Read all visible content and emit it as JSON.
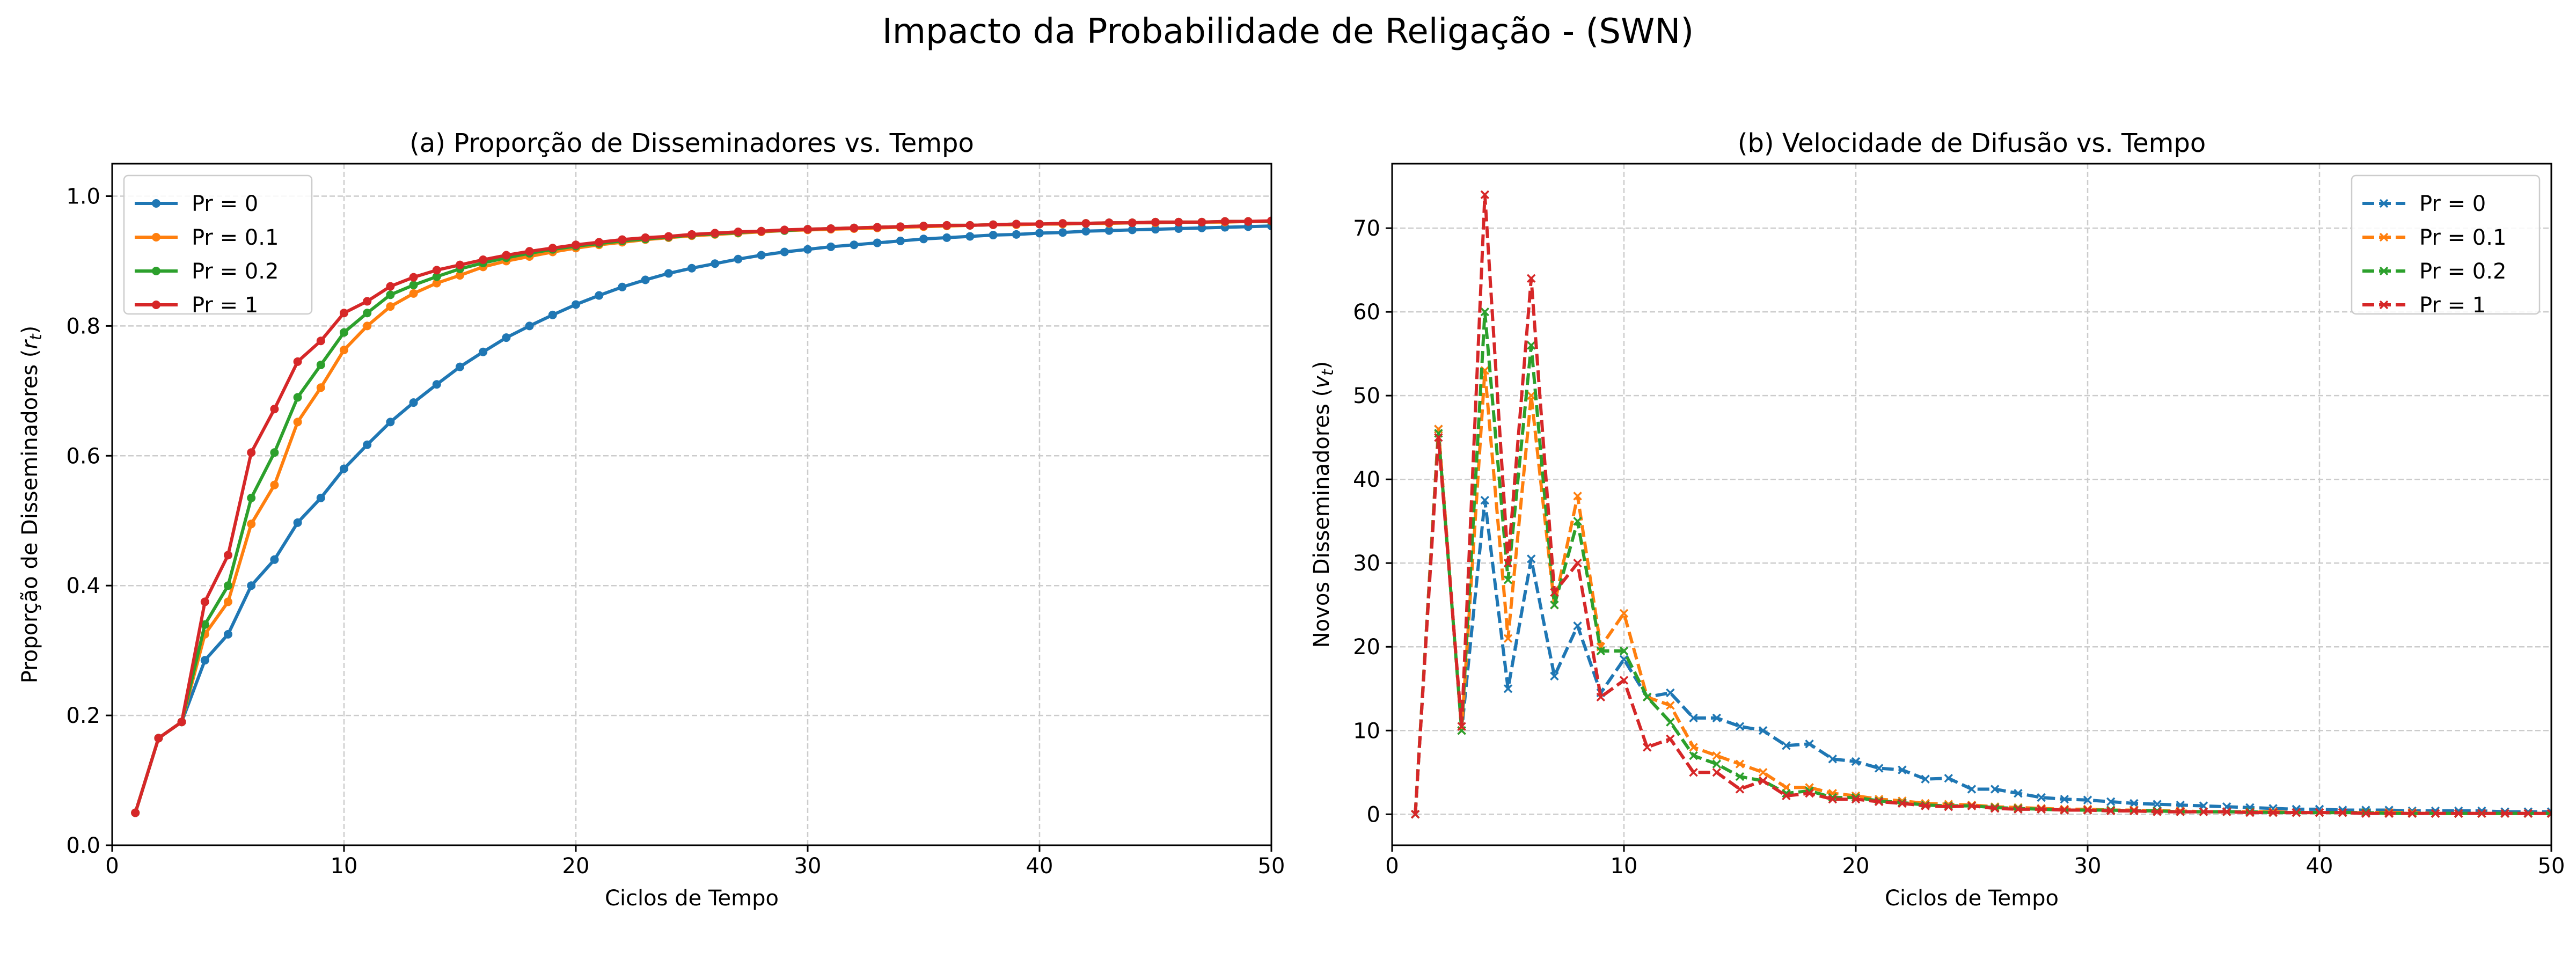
{
  "figure": {
    "title": "Impacto da Probabilidade de Religação - (SWN)"
  },
  "chart_data": [
    {
      "type": "line",
      "title": "(a) Proporção de Disseminadores vs. Tempo",
      "xlabel": "Ciclos de Tempo",
      "ylabel": "Proporção de Disseminadores (r_t)",
      "xlim": [
        0,
        50
      ],
      "ylim": [
        0,
        1.05
      ],
      "xticks": [
        0,
        10,
        20,
        30,
        40,
        50
      ],
      "yticks": [
        0.0,
        0.2,
        0.4,
        0.6,
        0.8,
        1.0
      ],
      "ytick_labels": [
        "0.0",
        "0.2",
        "0.4",
        "0.6",
        "0.8",
        "1.0"
      ],
      "grid": true,
      "legend_position": "upper-left",
      "line_style": "solid",
      "marker": "dot",
      "x": [
        1,
        2,
        3,
        4,
        5,
        6,
        7,
        8,
        9,
        10,
        11,
        12,
        13,
        14,
        15,
        16,
        17,
        18,
        19,
        20,
        21,
        22,
        23,
        24,
        25,
        26,
        27,
        28,
        29,
        30,
        31,
        32,
        33,
        34,
        35,
        36,
        37,
        38,
        39,
        40,
        41,
        42,
        43,
        44,
        45,
        46,
        47,
        48,
        49,
        50
      ],
      "series": [
        {
          "name": "Pr = 0",
          "color": "#1f77b4",
          "values": [
            0.05,
            0.165,
            0.19,
            0.285,
            0.325,
            0.4,
            0.44,
            0.497,
            0.535,
            0.58,
            0.617,
            0.652,
            0.682,
            0.71,
            0.737,
            0.76,
            0.782,
            0.8,
            0.817,
            0.833,
            0.847,
            0.86,
            0.871,
            0.881,
            0.889,
            0.896,
            0.903,
            0.909,
            0.914,
            0.918,
            0.922,
            0.925,
            0.928,
            0.931,
            0.934,
            0.936,
            0.938,
            0.94,
            0.941,
            0.943,
            0.944,
            0.946,
            0.947,
            0.948,
            0.949,
            0.95,
            0.951,
            0.952,
            0.953,
            0.954
          ]
        },
        {
          "name": "Pr = 0.1",
          "color": "#ff7f0e",
          "values": [
            0.05,
            0.165,
            0.19,
            0.325,
            0.375,
            0.495,
            0.555,
            0.652,
            0.705,
            0.763,
            0.8,
            0.83,
            0.85,
            0.866,
            0.878,
            0.891,
            0.9,
            0.907,
            0.914,
            0.92,
            0.925,
            0.929,
            0.933,
            0.936,
            0.939,
            0.941,
            0.943,
            0.945,
            0.947,
            0.948,
            0.949,
            0.95,
            0.951,
            0.952,
            0.953,
            0.954,
            0.955,
            0.956,
            0.956,
            0.957,
            0.957,
            0.958,
            0.958,
            0.959,
            0.959,
            0.96,
            0.96,
            0.96,
            0.961,
            0.961
          ]
        },
        {
          "name": "Pr = 0.2",
          "color": "#2ca02c",
          "values": [
            0.05,
            0.165,
            0.19,
            0.34,
            0.4,
            0.535,
            0.605,
            0.69,
            0.74,
            0.79,
            0.82,
            0.848,
            0.863,
            0.876,
            0.888,
            0.897,
            0.905,
            0.912,
            0.918,
            0.923,
            0.927,
            0.931,
            0.934,
            0.937,
            0.94,
            0.942,
            0.944,
            0.946,
            0.947,
            0.949,
            0.95,
            0.951,
            0.952,
            0.953,
            0.954,
            0.955,
            0.955,
            0.956,
            0.957,
            0.957,
            0.958,
            0.958,
            0.959,
            0.959,
            0.96,
            0.96,
            0.96,
            0.961,
            0.961,
            0.961
          ]
        },
        {
          "name": "Pr = 1",
          "color": "#d62728",
          "values": [
            0.05,
            0.165,
            0.19,
            0.375,
            0.447,
            0.605,
            0.672,
            0.745,
            0.777,
            0.82,
            0.838,
            0.861,
            0.875,
            0.886,
            0.894,
            0.902,
            0.909,
            0.915,
            0.92,
            0.925,
            0.929,
            0.933,
            0.936,
            0.938,
            0.941,
            0.943,
            0.945,
            0.946,
            0.948,
            0.949,
            0.95,
            0.951,
            0.952,
            0.953,
            0.954,
            0.955,
            0.955,
            0.956,
            0.957,
            0.957,
            0.958,
            0.958,
            0.959,
            0.959,
            0.96,
            0.96,
            0.96,
            0.961,
            0.961,
            0.962
          ]
        }
      ]
    },
    {
      "type": "line",
      "title": "(b) Velocidade de Difusão vs. Tempo",
      "xlabel": "Ciclos de Tempo",
      "ylabel": "Novos Disseminadores (v_t)",
      "xlim": [
        0,
        50
      ],
      "ylim": [
        -3.7,
        77.7
      ],
      "xticks": [
        0,
        10,
        20,
        30,
        40,
        50
      ],
      "yticks": [
        0,
        10,
        20,
        30,
        40,
        50,
        60,
        70
      ],
      "ytick_labels": [
        "0",
        "10",
        "20",
        "30",
        "40",
        "50",
        "60",
        "70"
      ],
      "grid": true,
      "legend_position": "upper-right",
      "line_style": "dashed",
      "marker": "x",
      "x": [
        1,
        2,
        3,
        4,
        5,
        6,
        7,
        8,
        9,
        10,
        11,
        12,
        13,
        14,
        15,
        16,
        17,
        18,
        19,
        20,
        21,
        22,
        23,
        24,
        25,
        26,
        27,
        28,
        29,
        30,
        31,
        32,
        33,
        34,
        35,
        36,
        37,
        38,
        39,
        40,
        41,
        42,
        43,
        44,
        45,
        46,
        47,
        48,
        49,
        50
      ],
      "series": [
        {
          "name": "Pr = 0",
          "color": "#1f77b4",
          "values": [
            0,
            46,
            10,
            37.5,
            15,
            30.5,
            16.5,
            22.5,
            14.5,
            18.5,
            14,
            14.5,
            11.5,
            11.5,
            10.5,
            10,
            8.2,
            8.4,
            6.6,
            6.3,
            5.5,
            5.3,
            4.2,
            4.3,
            3,
            3,
            2.5,
            2,
            1.8,
            1.7,
            1.5,
            1.3,
            1.2,
            1.1,
            1,
            0.9,
            0.8,
            0.7,
            0.6,
            0.6,
            0.5,
            0.5,
            0.5,
            0.4,
            0.4,
            0.4,
            0.4,
            0.3,
            0.3,
            0.3
          ]
        },
        {
          "name": "Pr = 0.1",
          "color": "#ff7f0e",
          "values": [
            0,
            46,
            10,
            53,
            21,
            50,
            25,
            38,
            20,
            24,
            14,
            13,
            8,
            7,
            6,
            5,
            3.2,
            3.2,
            2.5,
            2.2,
            1.8,
            1.6,
            1.3,
            1.2,
            1.1,
            0.9,
            0.8,
            0.7,
            0.6,
            0.6,
            0.5,
            0.5,
            0.4,
            0.4,
            0.3,
            0.3,
            0.3,
            0.3,
            0.2,
            0.2,
            0.2,
            0.2,
            0.2,
            0.2,
            0.1,
            0.1,
            0.1,
            0.1,
            0.1,
            0.1
          ]
        },
        {
          "name": "Pr = 0.2",
          "color": "#2ca02c",
          "values": [
            0,
            45.5,
            10,
            60,
            28,
            56,
            25,
            35,
            19.5,
            19.5,
            14,
            11,
            7,
            6,
            4.5,
            4,
            2.5,
            2.8,
            2,
            2,
            1.6,
            1.4,
            1.1,
            1,
            1,
            0.8,
            0.7,
            0.6,
            0.5,
            0.5,
            0.5,
            0.4,
            0.4,
            0.3,
            0.3,
            0.3,
            0.3,
            0.2,
            0.2,
            0.2,
            0.2,
            0.2,
            0.1,
            0.1,
            0.1,
            0.1,
            0.1,
            0.1,
            0.1,
            0.1
          ]
        },
        {
          "name": "Pr = 1",
          "color": "#d62728",
          "values": [
            0,
            45,
            10.5,
            74,
            30,
            64,
            26.5,
            30,
            14,
            16,
            8,
            9,
            5,
            5,
            3,
            4,
            2.2,
            2.5,
            1.8,
            1.8,
            1.5,
            1.3,
            1,
            0.9,
            1,
            0.7,
            0.6,
            0.6,
            0.5,
            0.5,
            0.4,
            0.4,
            0.3,
            0.3,
            0.3,
            0.3,
            0.2,
            0.2,
            0.2,
            0.2,
            0.2,
            0.1,
            0.1,
            0.1,
            0.1,
            0.1,
            0.1,
            0.1,
            0.1,
            0.1
          ]
        }
      ]
    }
  ]
}
